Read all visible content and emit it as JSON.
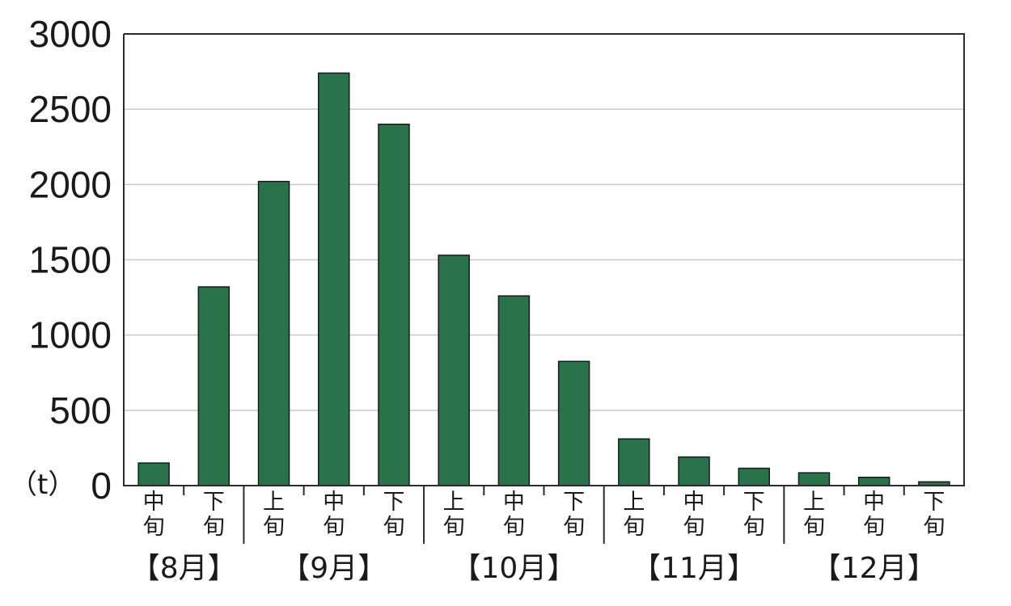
{
  "chart_data": {
    "type": "bar",
    "unit_label": "（t）",
    "ylim": [
      0,
      3000
    ],
    "yticks": [
      0,
      500,
      1000,
      1500,
      2000,
      2500,
      3000
    ],
    "grid": true,
    "bar_color": "#2a724a",
    "categories": [
      {
        "month": "8月",
        "dekad": "中旬"
      },
      {
        "month": "8月",
        "dekad": "下旬"
      },
      {
        "month": "9月",
        "dekad": "上旬"
      },
      {
        "month": "9月",
        "dekad": "中旬"
      },
      {
        "month": "9月",
        "dekad": "下旬"
      },
      {
        "month": "10月",
        "dekad": "上旬"
      },
      {
        "month": "10月",
        "dekad": "中旬"
      },
      {
        "month": "10月",
        "dekad": "下旬"
      },
      {
        "month": "11月",
        "dekad": "上旬"
      },
      {
        "month": "11月",
        "dekad": "中旬"
      },
      {
        "month": "11月",
        "dekad": "下旬"
      },
      {
        "month": "12月",
        "dekad": "上旬"
      },
      {
        "month": "12月",
        "dekad": "中旬"
      },
      {
        "month": "12月",
        "dekad": "下旬"
      }
    ],
    "values": [
      150,
      1320,
      2020,
      2740,
      2400,
      1530,
      1260,
      825,
      310,
      190,
      115,
      85,
      55,
      25
    ],
    "month_groups": [
      "【8月】",
      "【9月】",
      "【10月】",
      "【11月】",
      "【12月】"
    ]
  }
}
